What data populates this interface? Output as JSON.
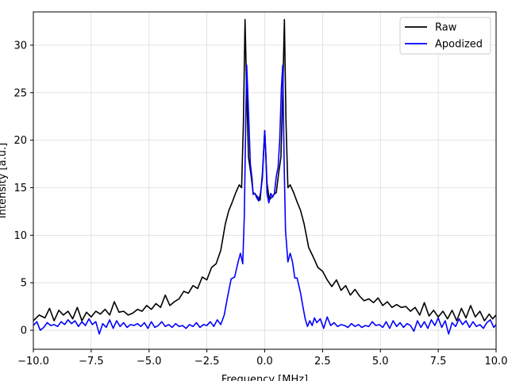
{
  "chart_data": {
    "type": "line",
    "title": "",
    "xlabel": "Frequency [MHz]",
    "ylabel": "Intensity [a.u.]",
    "xlim": [
      -10,
      10
    ],
    "ylim": [
      -2,
      33.5
    ],
    "xticks": [
      -10,
      -7.5,
      -5,
      -2.5,
      0,
      2.5,
      5,
      7.5,
      10
    ],
    "xtick_labels": [
      "−10.0",
      "−7.5",
      "−5.0",
      "−2.5",
      "0.0",
      "2.5",
      "5.0",
      "7.5",
      "10.0"
    ],
    "yticks": [
      0,
      5,
      10,
      15,
      20,
      25,
      30
    ],
    "ytick_labels": [
      "0",
      "5",
      "10",
      "15",
      "20",
      "25",
      "30"
    ],
    "grid": true,
    "legend_position": "top-right",
    "series": [
      {
        "name": "Raw",
        "color": "#000000",
        "points": [
          [
            -10,
            1.0
          ],
          [
            -9.75,
            1.6
          ],
          [
            -9.5,
            1.3
          ],
          [
            -9.3,
            2.3
          ],
          [
            -9.1,
            1.0
          ],
          [
            -8.9,
            2.1
          ],
          [
            -8.7,
            1.6
          ],
          [
            -8.5,
            2.0
          ],
          [
            -8.3,
            1.2
          ],
          [
            -8.1,
            2.4
          ],
          [
            -7.9,
            1.0
          ],
          [
            -7.7,
            1.9
          ],
          [
            -7.5,
            1.4
          ],
          [
            -7.3,
            2.0
          ],
          [
            -7.1,
            1.7
          ],
          [
            -6.9,
            2.2
          ],
          [
            -6.7,
            1.6
          ],
          [
            -6.5,
            3.0
          ],
          [
            -6.3,
            1.9
          ],
          [
            -6.1,
            2.0
          ],
          [
            -5.9,
            1.6
          ],
          [
            -5.7,
            1.8
          ],
          [
            -5.5,
            2.2
          ],
          [
            -5.3,
            2.0
          ],
          [
            -5.1,
            2.6
          ],
          [
            -4.9,
            2.2
          ],
          [
            -4.7,
            2.8
          ],
          [
            -4.5,
            2.4
          ],
          [
            -4.3,
            3.7
          ],
          [
            -4.1,
            2.6
          ],
          [
            -3.9,
            3.0
          ],
          [
            -3.7,
            3.3
          ],
          [
            -3.5,
            4.1
          ],
          [
            -3.3,
            3.9
          ],
          [
            -3.1,
            4.7
          ],
          [
            -2.9,
            4.4
          ],
          [
            -2.7,
            5.6
          ],
          [
            -2.5,
            5.3
          ],
          [
            -2.3,
            6.6
          ],
          [
            -2.1,
            7.0
          ],
          [
            -1.9,
            8.4
          ],
          [
            -1.7,
            11.2
          ],
          [
            -1.55,
            12.6
          ],
          [
            -1.4,
            13.5
          ],
          [
            -1.25,
            14.5
          ],
          [
            -1.1,
            15.3
          ],
          [
            -1.0,
            15.0
          ],
          [
            -0.92,
            22.0
          ],
          [
            -0.85,
            32.7
          ],
          [
            -0.78,
            25.0
          ],
          [
            -0.7,
            18.2
          ],
          [
            -0.6,
            16.5
          ],
          [
            -0.5,
            14.5
          ],
          [
            -0.4,
            14.3
          ],
          [
            -0.3,
            14.0
          ],
          [
            -0.2,
            13.7
          ],
          [
            -0.1,
            16.5
          ],
          [
            0.0,
            21.0
          ],
          [
            0.1,
            15.5
          ],
          [
            0.2,
            13.7
          ],
          [
            0.3,
            14.0
          ],
          [
            0.4,
            14.3
          ],
          [
            0.5,
            14.5
          ],
          [
            0.6,
            16.5
          ],
          [
            0.7,
            18.2
          ],
          [
            0.78,
            25.0
          ],
          [
            0.85,
            32.7
          ],
          [
            0.92,
            22.0
          ],
          [
            1.0,
            15.0
          ],
          [
            1.1,
            15.3
          ],
          [
            1.25,
            14.5
          ],
          [
            1.4,
            13.5
          ],
          [
            1.55,
            12.6
          ],
          [
            1.7,
            11.2
          ],
          [
            1.9,
            8.7
          ],
          [
            2.1,
            7.7
          ],
          [
            2.3,
            6.6
          ],
          [
            2.5,
            6.2
          ],
          [
            2.7,
            5.3
          ],
          [
            2.9,
            4.6
          ],
          [
            3.1,
            5.3
          ],
          [
            3.3,
            4.2
          ],
          [
            3.5,
            4.7
          ],
          [
            3.7,
            3.7
          ],
          [
            3.9,
            4.3
          ],
          [
            4.1,
            3.6
          ],
          [
            4.3,
            3.1
          ],
          [
            4.5,
            3.3
          ],
          [
            4.7,
            2.9
          ],
          [
            4.9,
            3.4
          ],
          [
            5.1,
            2.6
          ],
          [
            5.3,
            3.0
          ],
          [
            5.5,
            2.4
          ],
          [
            5.7,
            2.7
          ],
          [
            5.9,
            2.4
          ],
          [
            6.1,
            2.5
          ],
          [
            6.3,
            2.0
          ],
          [
            6.5,
            2.4
          ],
          [
            6.7,
            1.6
          ],
          [
            6.9,
            2.9
          ],
          [
            7.1,
            1.5
          ],
          [
            7.3,
            2.1
          ],
          [
            7.5,
            1.4
          ],
          [
            7.7,
            2.0
          ],
          [
            7.9,
            1.2
          ],
          [
            8.1,
            2.1
          ],
          [
            8.3,
            1.0
          ],
          [
            8.5,
            2.3
          ],
          [
            8.7,
            1.3
          ],
          [
            8.9,
            2.6
          ],
          [
            9.1,
            1.4
          ],
          [
            9.3,
            2.0
          ],
          [
            9.5,
            1.0
          ],
          [
            9.7,
            1.7
          ],
          [
            9.85,
            1.2
          ],
          [
            10,
            1.6
          ]
        ]
      },
      {
        "name": "Apodized",
        "color": "#0000ff",
        "points": [
          [
            -10,
            0.5
          ],
          [
            -9.85,
            0.9
          ],
          [
            -9.7,
            0.0
          ],
          [
            -9.55,
            0.3
          ],
          [
            -9.4,
            0.8
          ],
          [
            -9.25,
            0.5
          ],
          [
            -9.1,
            0.6
          ],
          [
            -8.95,
            0.4
          ],
          [
            -8.8,
            0.9
          ],
          [
            -8.65,
            0.6
          ],
          [
            -8.5,
            1.1
          ],
          [
            -8.35,
            0.7
          ],
          [
            -8.2,
            1.0
          ],
          [
            -8.05,
            0.4
          ],
          [
            -7.9,
            0.9
          ],
          [
            -7.75,
            0.5
          ],
          [
            -7.6,
            1.2
          ],
          [
            -7.45,
            0.6
          ],
          [
            -7.3,
            0.9
          ],
          [
            -7.15,
            -0.4
          ],
          [
            -7.0,
            0.7
          ],
          [
            -6.85,
            0.3
          ],
          [
            -6.7,
            1.1
          ],
          [
            -6.55,
            0.2
          ],
          [
            -6.4,
            1.0
          ],
          [
            -6.25,
            0.4
          ],
          [
            -6.1,
            0.8
          ],
          [
            -5.95,
            0.3
          ],
          [
            -5.8,
            0.6
          ],
          [
            -5.65,
            0.5
          ],
          [
            -5.5,
            0.7
          ],
          [
            -5.35,
            0.4
          ],
          [
            -5.2,
            0.8
          ],
          [
            -5.05,
            0.2
          ],
          [
            -4.9,
            0.9
          ],
          [
            -4.75,
            0.3
          ],
          [
            -4.6,
            0.5
          ],
          [
            -4.45,
            0.9
          ],
          [
            -4.3,
            0.4
          ],
          [
            -4.15,
            0.6
          ],
          [
            -4.0,
            0.3
          ],
          [
            -3.85,
            0.7
          ],
          [
            -3.7,
            0.4
          ],
          [
            -3.55,
            0.5
          ],
          [
            -3.4,
            0.2
          ],
          [
            -3.25,
            0.6
          ],
          [
            -3.1,
            0.4
          ],
          [
            -2.95,
            0.8
          ],
          [
            -2.8,
            0.3
          ],
          [
            -2.65,
            0.6
          ],
          [
            -2.5,
            0.5
          ],
          [
            -2.35,
            0.9
          ],
          [
            -2.2,
            0.4
          ],
          [
            -2.05,
            1.1
          ],
          [
            -1.9,
            0.6
          ],
          [
            -1.75,
            1.6
          ],
          [
            -1.6,
            3.6
          ],
          [
            -1.45,
            5.4
          ],
          [
            -1.3,
            5.6
          ],
          [
            -1.15,
            7.2
          ],
          [
            -1.05,
            8.1
          ],
          [
            -0.95,
            7.0
          ],
          [
            -0.88,
            12.0
          ],
          [
            -0.82,
            22.0
          ],
          [
            -0.78,
            27.9
          ],
          [
            -0.7,
            23.0
          ],
          [
            -0.62,
            17.5
          ],
          [
            -0.55,
            16.0
          ],
          [
            -0.5,
            14.3
          ],
          [
            -0.42,
            14.4
          ],
          [
            -0.34,
            13.9
          ],
          [
            -0.26,
            13.6
          ],
          [
            -0.18,
            14.5
          ],
          [
            -0.1,
            16.0
          ],
          [
            -0.05,
            18.5
          ],
          [
            0.0,
            21.0
          ],
          [
            0.05,
            18.5
          ],
          [
            0.1,
            14.4
          ],
          [
            0.18,
            13.4
          ],
          [
            0.26,
            14.4
          ],
          [
            0.34,
            14.0
          ],
          [
            0.42,
            14.4
          ],
          [
            0.5,
            16.2
          ],
          [
            0.58,
            17.2
          ],
          [
            0.65,
            20.0
          ],
          [
            0.72,
            25.5
          ],
          [
            0.78,
            27.9
          ],
          [
            0.84,
            17.5
          ],
          [
            0.9,
            10.5
          ],
          [
            1.0,
            7.2
          ],
          [
            1.1,
            8.1
          ],
          [
            1.2,
            7.2
          ],
          [
            1.3,
            5.5
          ],
          [
            1.4,
            5.5
          ],
          [
            1.55,
            3.9
          ],
          [
            1.65,
            2.5
          ],
          [
            1.75,
            1.2
          ],
          [
            1.85,
            0.4
          ],
          [
            1.95,
            1.0
          ],
          [
            2.05,
            0.5
          ],
          [
            2.15,
            1.3
          ],
          [
            2.25,
            0.8
          ],
          [
            2.4,
            1.2
          ],
          [
            2.55,
            0.2
          ],
          [
            2.7,
            1.4
          ],
          [
            2.85,
            0.5
          ],
          [
            3.0,
            0.8
          ],
          [
            3.15,
            0.4
          ],
          [
            3.3,
            0.6
          ],
          [
            3.45,
            0.5
          ],
          [
            3.6,
            0.3
          ],
          [
            3.75,
            0.7
          ],
          [
            3.9,
            0.4
          ],
          [
            4.05,
            0.6
          ],
          [
            4.2,
            0.3
          ],
          [
            4.35,
            0.5
          ],
          [
            4.5,
            0.4
          ],
          [
            4.65,
            0.9
          ],
          [
            4.8,
            0.5
          ],
          [
            4.95,
            0.6
          ],
          [
            5.1,
            0.3
          ],
          [
            5.25,
            0.9
          ],
          [
            5.4,
            0.2
          ],
          [
            5.55,
            1.0
          ],
          [
            5.7,
            0.4
          ],
          [
            5.85,
            0.8
          ],
          [
            6.0,
            0.3
          ],
          [
            6.15,
            0.7
          ],
          [
            6.3,
            0.5
          ],
          [
            6.45,
            -0.1
          ],
          [
            6.6,
            1.0
          ],
          [
            6.75,
            0.3
          ],
          [
            6.9,
            0.9
          ],
          [
            7.05,
            0.2
          ],
          [
            7.2,
            1.1
          ],
          [
            7.35,
            0.5
          ],
          [
            7.5,
            1.3
          ],
          [
            7.65,
            0.3
          ],
          [
            7.8,
            1.0
          ],
          [
            7.95,
            -0.4
          ],
          [
            8.1,
            0.8
          ],
          [
            8.25,
            0.4
          ],
          [
            8.4,
            1.2
          ],
          [
            8.55,
            0.6
          ],
          [
            8.7,
            1.0
          ],
          [
            8.85,
            0.3
          ],
          [
            9.0,
            0.9
          ],
          [
            9.15,
            0.4
          ],
          [
            9.3,
            0.6
          ],
          [
            9.45,
            0.2
          ],
          [
            9.6,
            0.8
          ],
          [
            9.75,
            1.1
          ],
          [
            9.9,
            0.3
          ],
          [
            10,
            0.6
          ]
        ]
      }
    ]
  }
}
